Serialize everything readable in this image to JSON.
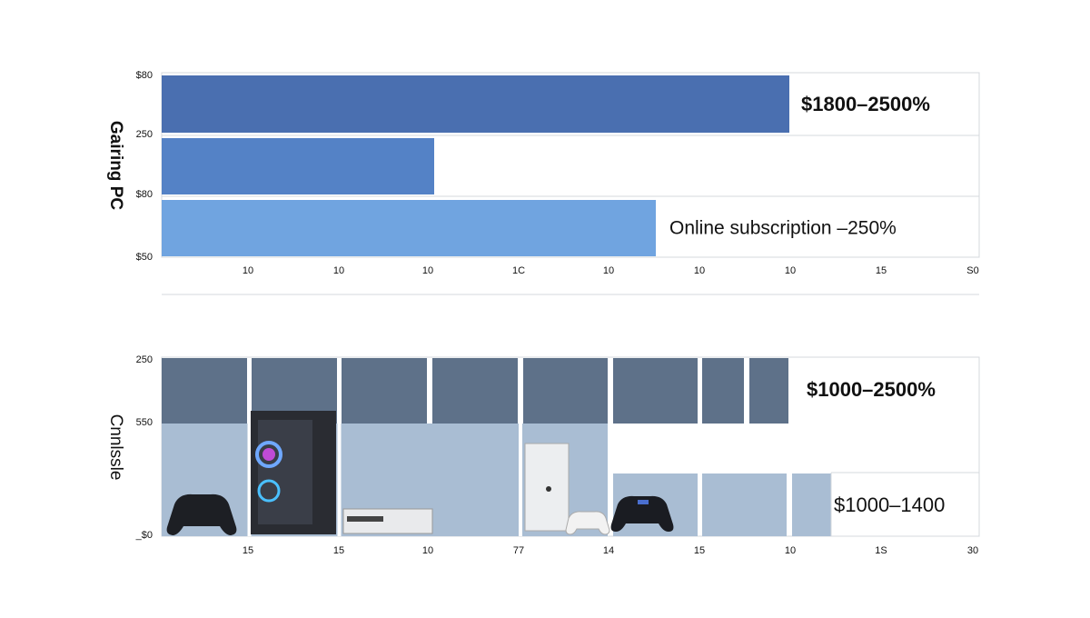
{
  "panels": [
    {
      "title": "Gairing PC",
      "y_labels": [
        "$80",
        "250",
        "$80",
        "$50"
      ],
      "x_labels": [
        "10",
        "10",
        "10",
        "1C",
        "10",
        "10",
        "10",
        "15",
        "S0"
      ],
      "annotations": [
        "$1800–2500%",
        "Online subscription  –250%"
      ]
    },
    {
      "title": "Cnnlssle",
      "y_labels": [
        "250",
        "550",
        "_$0"
      ],
      "x_labels": [
        "15",
        "15",
        "10",
        "77",
        "14",
        "15",
        "10",
        "1S",
        "30"
      ],
      "annotations": [
        "$1000–2500%",
        "$1000–1400"
      ]
    }
  ]
}
